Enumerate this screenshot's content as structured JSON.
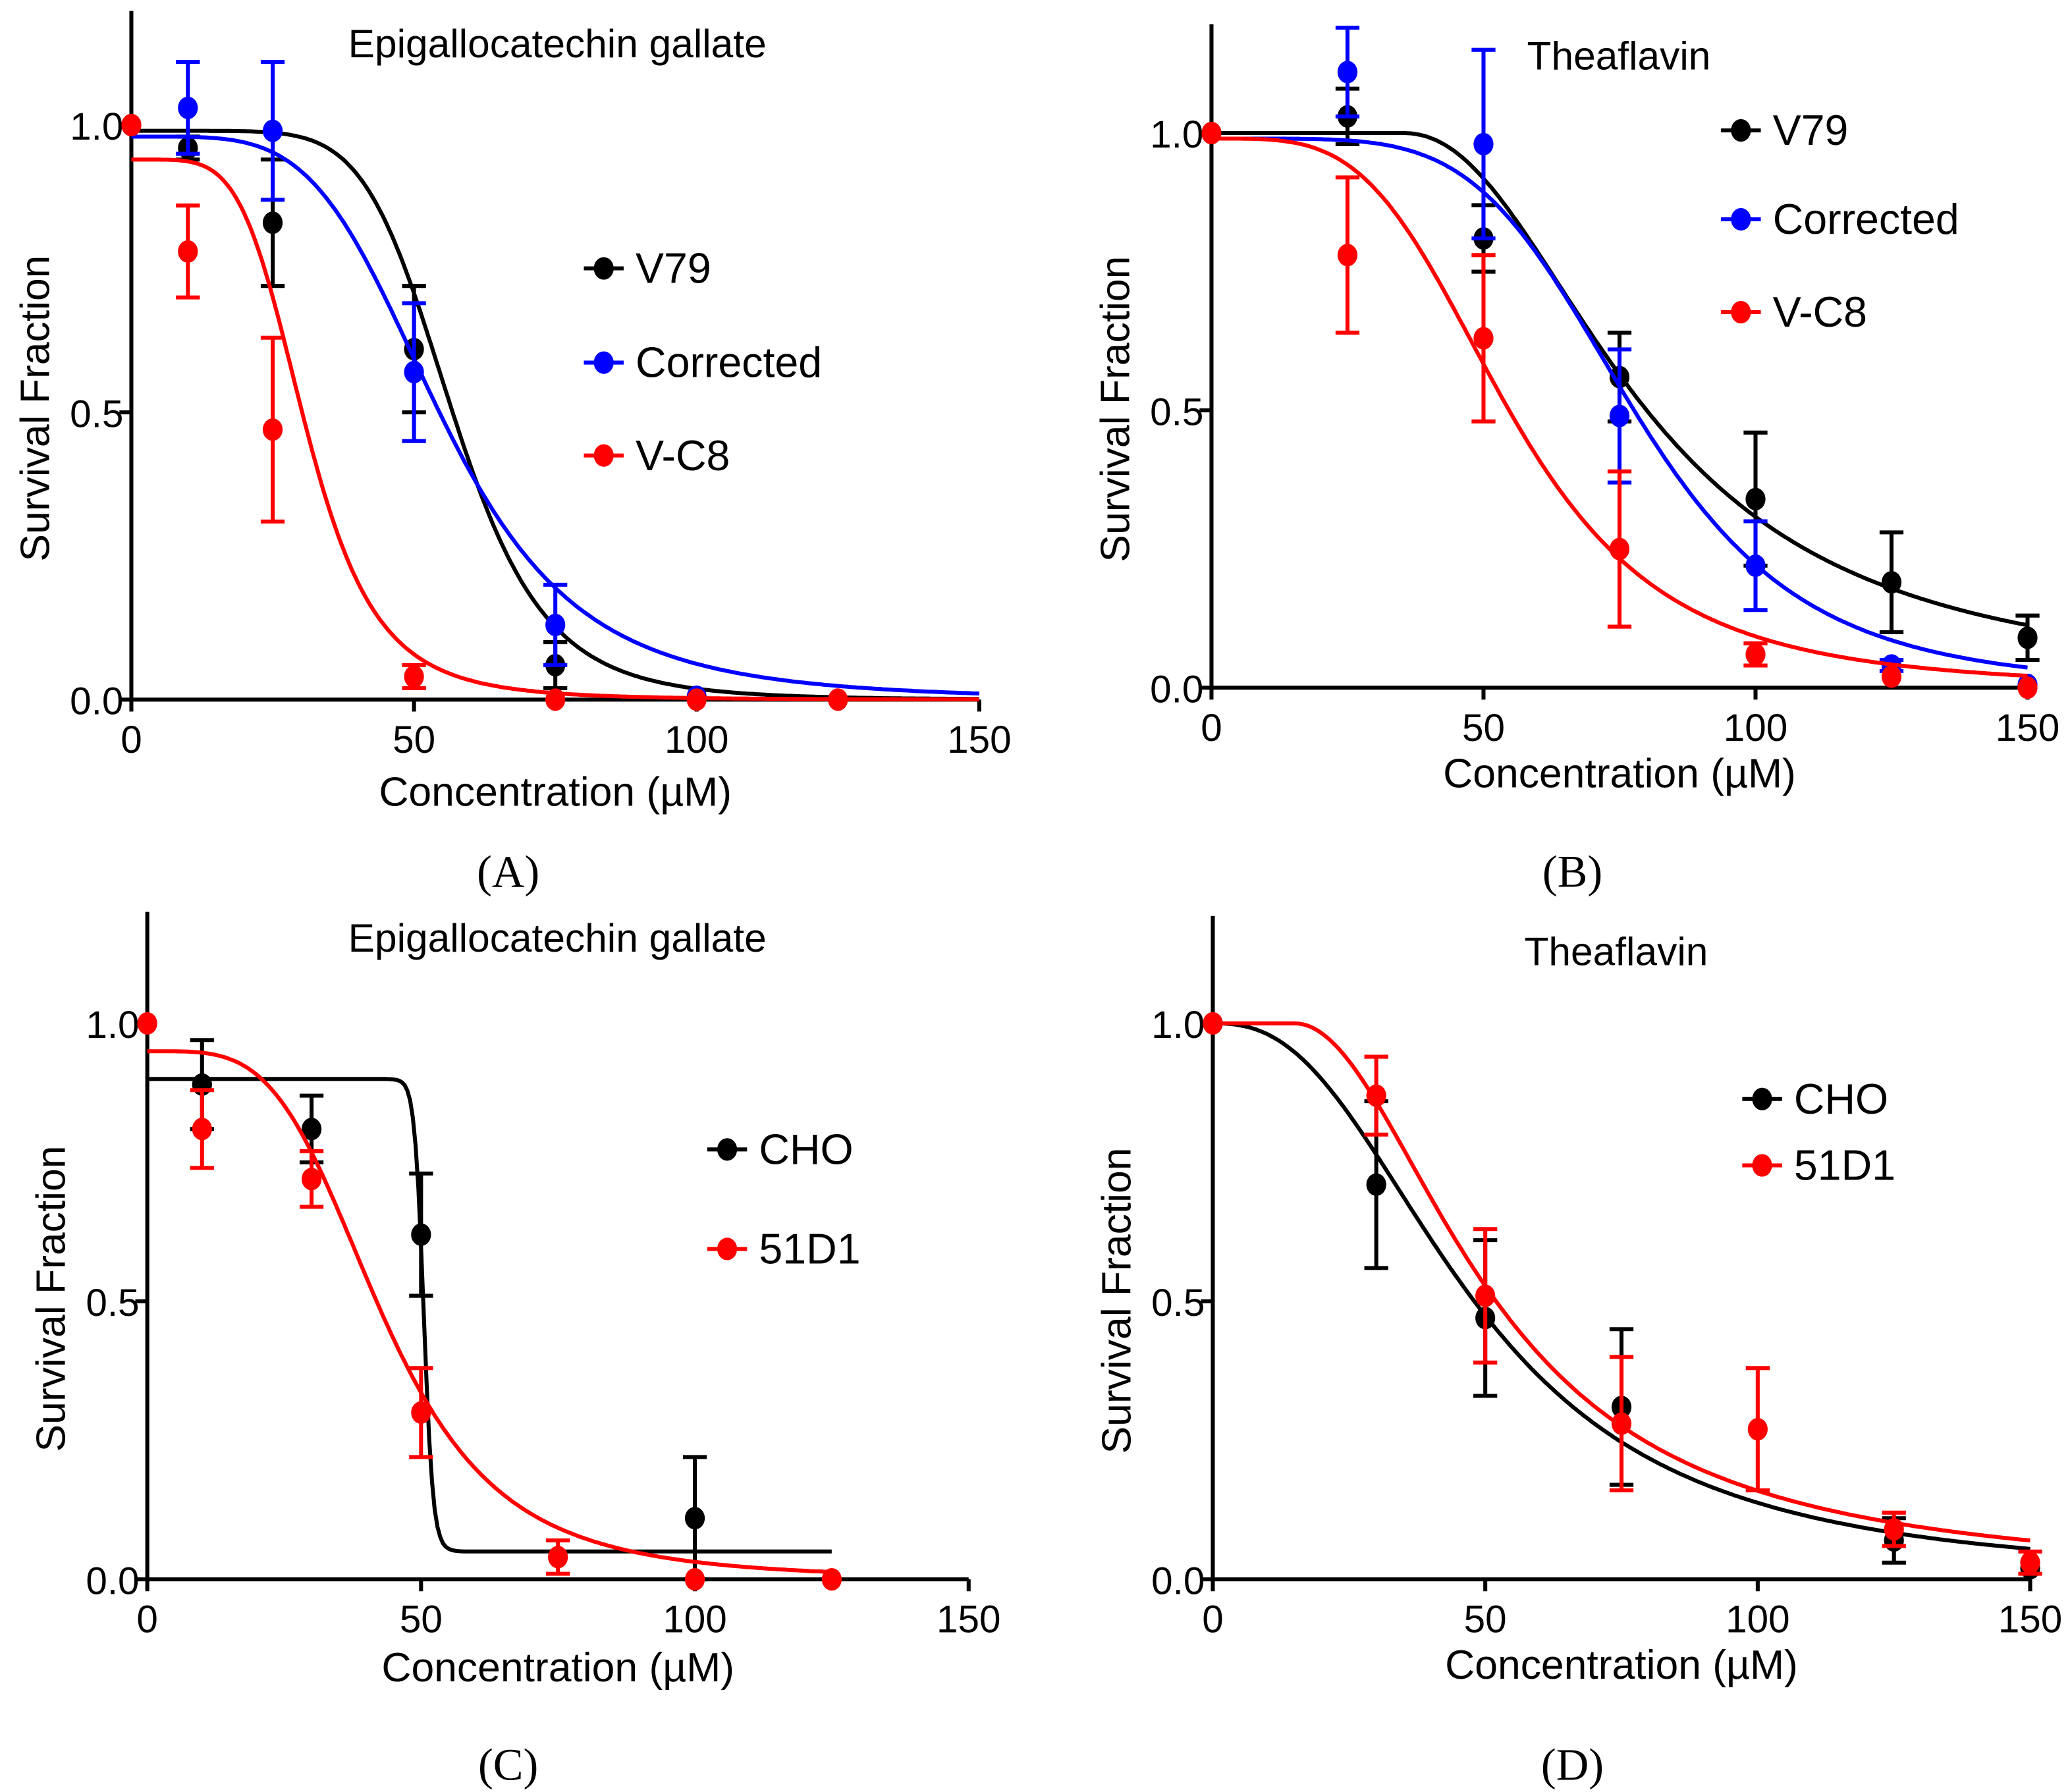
{
  "chart_data": [
    {
      "panel_label": "(A)",
      "type": "scatter",
      "title": "Epigallocatechin gallate",
      "xlabel": "Concentration (µM)",
      "ylabel": "Survival Fraction",
      "xlim": [
        0,
        150
      ],
      "ylim": [
        0,
        1.2
      ],
      "xticks": [
        "0",
        "50",
        "100",
        "150"
      ],
      "xtick_values": [
        0,
        50,
        100,
        150
      ],
      "yticks": [
        "0.0",
        "0.5",
        "1.0"
      ],
      "ytick_values": [
        0,
        0.5,
        1.0
      ],
      "legend_position": "center-right",
      "series": [
        {
          "name": "V79",
          "color": "#000000",
          "points": [
            [
              0,
              1.0,
              0
            ],
            [
              10,
              0.96,
              0.02
            ],
            [
              25,
              0.83,
              0.11
            ],
            [
              50,
              0.61,
              0.11
            ],
            [
              75,
              0.06,
              0.04
            ]
          ],
          "fit": {
            "top": 0.99,
            "bottom": 0,
            "ec50": 57,
            "hill": 7,
            "x0": 0,
            "xmax": 150
          }
        },
        {
          "name": "Corrected",
          "color": "#0000ff",
          "points": [
            [
              10,
              1.03,
              0.08
            ],
            [
              25,
              0.99,
              0.12
            ],
            [
              50,
              0.57,
              0.12
            ],
            [
              75,
              0.13,
              0.07
            ],
            [
              100,
              0.005,
              0
            ]
          ],
          "fit": {
            "top": 0.98,
            "bottom": 0,
            "ec50": 55,
            "hill": 4.5,
            "x0": 0,
            "xmax": 150
          }
        },
        {
          "name": "V-C8",
          "color": "#ff0000",
          "points": [
            [
              0,
              1.0,
              0
            ],
            [
              10,
              0.78,
              0.08
            ],
            [
              25,
              0.47,
              0.16
            ],
            [
              50,
              0.04,
              0.02
            ],
            [
              75,
              0,
              0
            ],
            [
              100,
              0,
              0
            ],
            [
              125,
              0,
              0
            ]
          ],
          "fit": {
            "top": 0.94,
            "bottom": 0,
            "ec50": 31,
            "hill": 5,
            "x0": 0,
            "xmax": 150
          }
        }
      ]
    },
    {
      "panel_label": "(B)",
      "type": "scatter",
      "title": "Theaflavin",
      "xlabel": "Concentration (µM)",
      "ylabel": "Survival Fraction",
      "xlim": [
        0,
        150
      ],
      "ylim": [
        0,
        1.2
      ],
      "xticks": [
        "0",
        "50",
        "100",
        "150"
      ],
      "xtick_values": [
        0,
        50,
        100,
        150
      ],
      "yticks": [
        "0.0",
        "0.5",
        "1.0"
      ],
      "ytick_values": [
        0,
        0.5,
        1.0
      ],
      "legend_position": "top-right",
      "series": [
        {
          "name": "V79",
          "color": "#000000",
          "points": [
            [
              0,
              1.0,
              0
            ],
            [
              25,
              1.03,
              0.05
            ],
            [
              50,
              0.81,
              0.06
            ],
            [
              75,
              0.56,
              0.08
            ],
            [
              100,
              0.34,
              0.12
            ],
            [
              125,
              0.19,
              0.09
            ],
            [
              150,
              0.09,
              0.04
            ]
          ],
          "fit": {
            "top": 1.0,
            "bottom": 0,
            "ec50": 45,
            "hill": 2.2,
            "x0": 35,
            "xmax": 150
          }
        },
        {
          "name": "Corrected",
          "color": "#0000ff",
          "points": [
            [
              25,
              1.11,
              0.08
            ],
            [
              50,
              0.98,
              0.17
            ],
            [
              75,
              0.49,
              0.12
            ],
            [
              100,
              0.22,
              0.08
            ],
            [
              125,
              0.04,
              0.01
            ],
            [
              150,
              0.005,
              0
            ]
          ],
          "fit": {
            "top": 0.99,
            "bottom": 0,
            "ec50": 78,
            "hill": 5,
            "x0": 0,
            "xmax": 150
          }
        },
        {
          "name": "V-C8",
          "color": "#ff0000",
          "points": [
            [
              0,
              1.0,
              0
            ],
            [
              25,
              0.78,
              0.14
            ],
            [
              50,
              0.63,
              0.15
            ],
            [
              75,
              0.25,
              0.14
            ],
            [
              100,
              0.06,
              0.02
            ],
            [
              125,
              0.02,
              0
            ],
            [
              150,
              0.0,
              0
            ]
          ],
          "fit": {
            "top": 0.99,
            "bottom": 0,
            "ec50": 55,
            "hill": 3.8,
            "x0": 0,
            "xmax": 150
          }
        }
      ]
    },
    {
      "panel_label": "(C)",
      "type": "scatter",
      "title": "Epigallocatechin gallate",
      "xlabel": "Concentration (µM)",
      "ylabel": "Survival Fraction",
      "xlim": [
        0,
        150
      ],
      "ylim": [
        0,
        1.2
      ],
      "xticks": [
        "0",
        "50",
        "100",
        "150"
      ],
      "xtick_values": [
        0,
        50,
        100,
        150
      ],
      "yticks": [
        "0.0",
        "0.5",
        "1.0"
      ],
      "ytick_values": [
        0,
        0.5,
        1.0
      ],
      "legend_position": "center-right",
      "series": [
        {
          "name": "CHO",
          "color": "#000000",
          "points": [
            [
              10,
              0.89,
              0.08
            ],
            [
              30,
              0.81,
              0.06
            ],
            [
              50,
              0.62,
              0.11
            ],
            [
              100,
              0.11,
              0.11
            ]
          ],
          "fit": {
            "top": 0.9,
            "bottom": 0.05,
            "ec50": 50.5,
            "hill": 60,
            "x0": 0,
            "xmax": 125
          }
        },
        {
          "name": "51D1",
          "color": "#ff0000",
          "points": [
            [
              0,
              1.0,
              0
            ],
            [
              10,
              0.81,
              0.07
            ],
            [
              30,
              0.72,
              0.05
            ],
            [
              50,
              0.3,
              0.08
            ],
            [
              75,
              0.04,
              0.03
            ],
            [
              100,
              0,
              0
            ],
            [
              125,
              0,
              0
            ]
          ],
          "fit": {
            "top": 0.95,
            "bottom": 0,
            "ec50": 43,
            "hill": 4,
            "x0": 0,
            "xmax": 125
          }
        }
      ]
    },
    {
      "panel_label": "(D)",
      "type": "scatter",
      "title": "Theaflavin",
      "xlabel": "Concentration (µM)",
      "ylabel": "Survival Fraction",
      "xlim": [
        0,
        150
      ],
      "ylim": [
        0,
        1.2
      ],
      "xticks": [
        "0",
        "50",
        "100",
        "150"
      ],
      "xtick_values": [
        0,
        50,
        100,
        150
      ],
      "yticks": [
        "0.0",
        "0.5",
        "1.0"
      ],
      "ytick_values": [
        0,
        0.5,
        1.0
      ],
      "legend_position": "top-right",
      "series": [
        {
          "name": "CHO",
          "color": "#000000",
          "points": [
            [
              0,
              1.0,
              0
            ],
            [
              30,
              0.71,
              0.15
            ],
            [
              50,
              0.47,
              0.14
            ],
            [
              75,
              0.31,
              0.14
            ],
            [
              125,
              0.07,
              0.04
            ],
            [
              150,
              0.02,
              0
            ]
          ],
          "fit": {
            "top": 1.0,
            "bottom": 0,
            "ec50": 48,
            "hill": 2.5,
            "x0": 0,
            "xmax": 150
          }
        },
        {
          "name": "51D1",
          "color": "#ff0000",
          "points": [
            [
              0,
              1.0,
              0
            ],
            [
              30,
              0.87,
              0.07
            ],
            [
              50,
              0.51,
              0.12
            ],
            [
              75,
              0.28,
              0.12
            ],
            [
              100,
              0.27,
              0.11
            ],
            [
              125,
              0.09,
              0.03
            ],
            [
              150,
              0.03,
              0.02
            ]
          ],
          "fit": {
            "top": 1.0,
            "bottom": 0,
            "ec50": 37,
            "hill": 2,
            "x0": 15,
            "xmax": 150
          }
        }
      ]
    }
  ]
}
